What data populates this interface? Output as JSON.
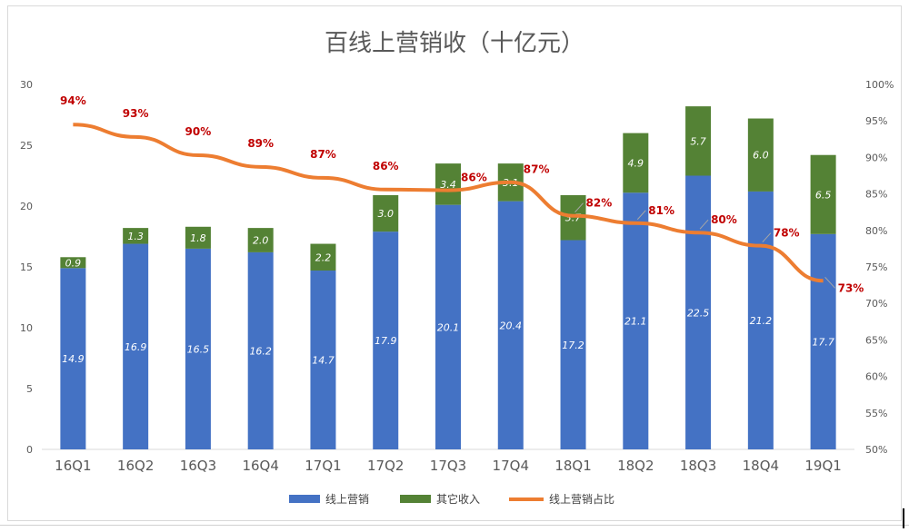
{
  "chart_data": {
    "type": "bar",
    "stacked": true,
    "title": "百线上营销收（十亿元）",
    "categories": [
      "16Q1",
      "16Q2",
      "16Q3",
      "16Q4",
      "17Q1",
      "17Q2",
      "17Q3",
      "17Q4",
      "18Q1",
      "18Q2",
      "18Q3",
      "18Q4",
      "19Q1"
    ],
    "series": [
      {
        "name": "线上营销",
        "type": "bar",
        "color": "#4472C4",
        "values": [
          14.9,
          16.9,
          16.5,
          16.2,
          14.7,
          17.9,
          20.1,
          20.4,
          17.2,
          21.1,
          22.5,
          21.2,
          17.7
        ],
        "labels": [
          "14.9",
          "16.9",
          "16.5",
          "16.2",
          "14.7",
          "17.9",
          "20.1",
          "20.4",
          "17.2",
          "21.1",
          "22.5",
          "21.2",
          "17.7"
        ]
      },
      {
        "name": "其它收入",
        "type": "bar",
        "color": "#548235",
        "values": [
          0.9,
          1.3,
          1.8,
          2.0,
          2.2,
          3.0,
          3.4,
          3.1,
          3.7,
          4.9,
          5.7,
          6.0,
          6.5
        ],
        "labels": [
          "0.9",
          "1.3",
          "1.8",
          "2.0",
          "2.2",
          "3.0",
          "3.4",
          "3.1",
          "3.7",
          "4.9",
          "5.7",
          "6.0",
          "6.5"
        ]
      },
      {
        "name": "线上营销占比",
        "type": "line",
        "axis": "right",
        "color": "#ED7D31",
        "values": [
          94.5,
          92.8,
          90.3,
          88.7,
          87.2,
          85.6,
          85.5,
          86.6,
          82.0,
          81.0,
          79.7,
          77.9,
          73.1
        ],
        "labels": [
          "94%",
          "93%",
          "90%",
          "89%",
          "87%",
          "86%",
          "86%",
          "87%",
          "82%",
          "81%",
          "80%",
          "78%",
          "73%"
        ]
      }
    ],
    "left_axis": {
      "min": 0,
      "max": 30,
      "ticks": [
        "0",
        "5",
        "10",
        "15",
        "20",
        "25",
        "30"
      ]
    },
    "right_axis": {
      "min": 50,
      "max": 100,
      "ticks": [
        "50%",
        "55%",
        "60%",
        "65%",
        "70%",
        "75%",
        "80%",
        "85%",
        "90%",
        "95%",
        "100%"
      ]
    },
    "grid": false,
    "legend": "bottom",
    "label_color": "#C00000"
  }
}
